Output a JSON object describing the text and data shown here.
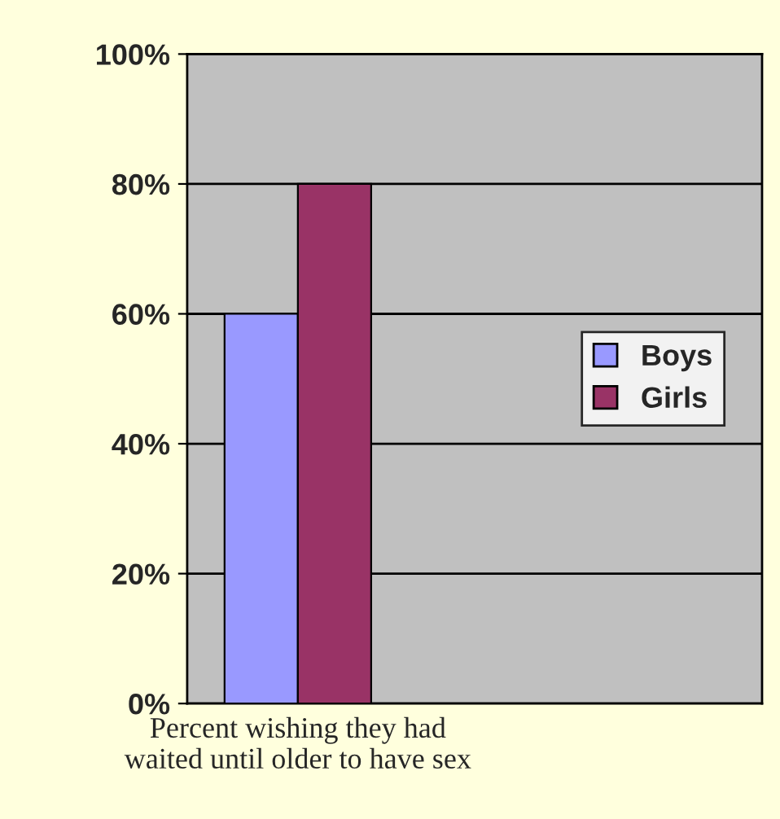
{
  "chart_data": {
    "type": "bar",
    "categories": [
      "Percent wishing they had\nwaited until older to have sex"
    ],
    "series": [
      {
        "name": "Boys",
        "color": "#9999ff",
        "values": [
          60
        ]
      },
      {
        "name": "Girls",
        "color": "#993366",
        "values": [
          80
        ]
      }
    ],
    "ylim": [
      0,
      100
    ],
    "yticks": [
      {
        "value": 0,
        "label": "0%"
      },
      {
        "value": 20,
        "label": "20%"
      },
      {
        "value": 40,
        "label": "40%"
      },
      {
        "value": 60,
        "label": "60%"
      },
      {
        "value": 80,
        "label": "80%"
      },
      {
        "value": 100,
        "label": "100%"
      }
    ],
    "grid": "y",
    "legend": "right"
  }
}
